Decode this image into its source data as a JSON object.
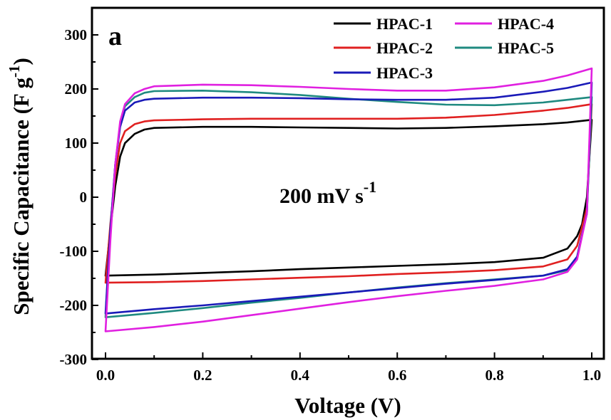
{
  "chart_data": {
    "type": "line",
    "panel_label": "a",
    "xlabel": "Voltage (V)",
    "ylabel": {
      "main": "Specific Capacitance (F g",
      "sup": "-1",
      "close": ")"
    },
    "annotation": {
      "main": "200 mV s",
      "sup": "-1"
    },
    "xlim": [
      0.0,
      1.0
    ],
    "ylim": [
      -300,
      350
    ],
    "xticks": [
      0.0,
      0.2,
      0.4,
      0.6,
      0.8,
      1.0
    ],
    "xtick_labels": [
      "0.0",
      "0.2",
      "0.4",
      "0.6",
      "0.8",
      "1.0"
    ],
    "yticks": [
      -300,
      -200,
      -100,
      0,
      100,
      200,
      300
    ],
    "ytick_labels": [
      "-300",
      "-200",
      "-100",
      "0",
      "100",
      "200",
      "300"
    ],
    "grid": false,
    "legend_position": "top-right",
    "series": [
      {
        "name": "HPAC-1",
        "color": "#000000",
        "upper": [
          [
            0.0,
            -145
          ],
          [
            0.01,
            -60
          ],
          [
            0.02,
            20
          ],
          [
            0.03,
            75
          ],
          [
            0.04,
            100
          ],
          [
            0.06,
            117
          ],
          [
            0.08,
            125
          ],
          [
            0.1,
            128
          ],
          [
            0.2,
            130
          ],
          [
            0.3,
            130
          ],
          [
            0.4,
            129
          ],
          [
            0.5,
            128
          ],
          [
            0.6,
            127
          ],
          [
            0.7,
            128
          ],
          [
            0.8,
            131
          ],
          [
            0.9,
            135
          ],
          [
            0.95,
            138
          ],
          [
            1.0,
            143
          ]
        ],
        "lower": [
          [
            0.0,
            -145
          ],
          [
            0.1,
            -143
          ],
          [
            0.2,
            -140
          ],
          [
            0.3,
            -137
          ],
          [
            0.4,
            -133
          ],
          [
            0.5,
            -130
          ],
          [
            0.6,
            -127
          ],
          [
            0.7,
            -124
          ],
          [
            0.8,
            -120
          ],
          [
            0.9,
            -112
          ],
          [
            0.95,
            -95
          ],
          [
            0.97,
            -72
          ],
          [
            0.98,
            -50
          ],
          [
            0.99,
            0
          ],
          [
            1.0,
            143
          ]
        ]
      },
      {
        "name": "HPAC-2",
        "color": "#e02020",
        "upper": [
          [
            0.0,
            -158
          ],
          [
            0.01,
            -50
          ],
          [
            0.02,
            40
          ],
          [
            0.03,
            100
          ],
          [
            0.04,
            122
          ],
          [
            0.06,
            135
          ],
          [
            0.08,
            140
          ],
          [
            0.1,
            142
          ],
          [
            0.2,
            144
          ],
          [
            0.3,
            145
          ],
          [
            0.4,
            145
          ],
          [
            0.5,
            145
          ],
          [
            0.6,
            145
          ],
          [
            0.7,
            147
          ],
          [
            0.8,
            152
          ],
          [
            0.9,
            160
          ],
          [
            0.95,
            165
          ],
          [
            1.0,
            172
          ]
        ],
        "lower": [
          [
            0.0,
            -158
          ],
          [
            0.1,
            -157
          ],
          [
            0.2,
            -155
          ],
          [
            0.3,
            -152
          ],
          [
            0.4,
            -149
          ],
          [
            0.5,
            -146
          ],
          [
            0.6,
            -142
          ],
          [
            0.7,
            -139
          ],
          [
            0.8,
            -135
          ],
          [
            0.9,
            -128
          ],
          [
            0.95,
            -115
          ],
          [
            0.97,
            -90
          ],
          [
            0.99,
            -20
          ],
          [
            1.0,
            172
          ]
        ]
      },
      {
        "name": "HPAC-3",
        "color": "#1a1ab8",
        "upper": [
          [
            0.0,
            -215
          ],
          [
            0.01,
            -60
          ],
          [
            0.02,
            60
          ],
          [
            0.03,
            130
          ],
          [
            0.04,
            160
          ],
          [
            0.06,
            175
          ],
          [
            0.08,
            180
          ],
          [
            0.1,
            182
          ],
          [
            0.2,
            184
          ],
          [
            0.3,
            184
          ],
          [
            0.4,
            183
          ],
          [
            0.5,
            181
          ],
          [
            0.6,
            180
          ],
          [
            0.7,
            180
          ],
          [
            0.8,
            184
          ],
          [
            0.9,
            195
          ],
          [
            0.95,
            202
          ],
          [
            1.0,
            212
          ]
        ],
        "lower": [
          [
            0.0,
            -215
          ],
          [
            0.1,
            -207
          ],
          [
            0.2,
            -200
          ],
          [
            0.3,
            -192
          ],
          [
            0.4,
            -184
          ],
          [
            0.5,
            -176
          ],
          [
            0.6,
            -168
          ],
          [
            0.7,
            -160
          ],
          [
            0.8,
            -153
          ],
          [
            0.9,
            -145
          ],
          [
            0.95,
            -133
          ],
          [
            0.97,
            -110
          ],
          [
            0.99,
            -30
          ],
          [
            1.0,
            212
          ]
        ]
      },
      {
        "name": "HPAC-4",
        "color": "#e020e0",
        "upper": [
          [
            0.0,
            -248
          ],
          [
            0.01,
            -80
          ],
          [
            0.02,
            60
          ],
          [
            0.03,
            140
          ],
          [
            0.04,
            172
          ],
          [
            0.06,
            192
          ],
          [
            0.08,
            200
          ],
          [
            0.1,
            205
          ],
          [
            0.2,
            208
          ],
          [
            0.3,
            207
          ],
          [
            0.4,
            204
          ],
          [
            0.5,
            200
          ],
          [
            0.6,
            197
          ],
          [
            0.7,
            197
          ],
          [
            0.8,
            203
          ],
          [
            0.9,
            215
          ],
          [
            0.95,
            225
          ],
          [
            1.0,
            238
          ]
        ],
        "lower": [
          [
            0.0,
            -248
          ],
          [
            0.1,
            -240
          ],
          [
            0.2,
            -230
          ],
          [
            0.3,
            -218
          ],
          [
            0.4,
            -206
          ],
          [
            0.5,
            -194
          ],
          [
            0.6,
            -183
          ],
          [
            0.7,
            -173
          ],
          [
            0.8,
            -164
          ],
          [
            0.9,
            -152
          ],
          [
            0.95,
            -138
          ],
          [
            0.97,
            -115
          ],
          [
            0.99,
            -30
          ],
          [
            1.0,
            238
          ]
        ]
      },
      {
        "name": "HPAC-5",
        "color": "#1f8a80",
        "upper": [
          [
            0.0,
            -222
          ],
          [
            0.01,
            -60
          ],
          [
            0.02,
            60
          ],
          [
            0.03,
            135
          ],
          [
            0.04,
            168
          ],
          [
            0.06,
            185
          ],
          [
            0.08,
            193
          ],
          [
            0.1,
            196
          ],
          [
            0.2,
            197
          ],
          [
            0.3,
            194
          ],
          [
            0.4,
            189
          ],
          [
            0.5,
            182
          ],
          [
            0.6,
            176
          ],
          [
            0.7,
            171
          ],
          [
            0.8,
            170
          ],
          [
            0.9,
            175
          ],
          [
            0.95,
            180
          ],
          [
            1.0,
            185
          ]
        ],
        "lower": [
          [
            0.0,
            -222
          ],
          [
            0.1,
            -214
          ],
          [
            0.2,
            -205
          ],
          [
            0.3,
            -195
          ],
          [
            0.4,
            -186
          ],
          [
            0.5,
            -176
          ],
          [
            0.6,
            -167
          ],
          [
            0.7,
            -159
          ],
          [
            0.8,
            -152
          ],
          [
            0.9,
            -145
          ],
          [
            0.95,
            -135
          ],
          [
            0.97,
            -110
          ],
          [
            0.99,
            -30
          ],
          [
            1.0,
            185
          ]
        ]
      }
    ]
  }
}
